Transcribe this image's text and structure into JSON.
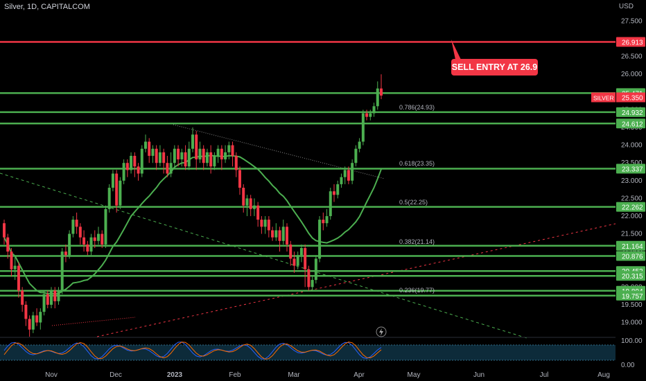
{
  "chart_data": {
    "type": "candlestick",
    "symbol": "Silver, 1D, CAPITALCOM",
    "currency": "USD",
    "y_range": [
      18.6,
      27.9
    ],
    "price_ticks": [
      "27.500",
      "26.500",
      "26.000",
      "25.000",
      "24.500",
      "24.000",
      "23.500",
      "23.000",
      "22.500",
      "22.000",
      "21.500",
      "21.000",
      "20.500",
      "20.000",
      "19.500",
      "19.000"
    ],
    "x_ticks": [
      "Nov",
      "Dec",
      "2023",
      "Feb",
      "Mar",
      "Apr",
      "May",
      "Jun",
      "Jul",
      "Aug"
    ],
    "horizontal_levels": [
      {
        "value": 26.913,
        "label": "26.913",
        "color": "#f23645"
      },
      {
        "value": 25.471,
        "label": "25.471",
        "color": "#4caf50"
      },
      {
        "value": 24.932,
        "label": "24.932",
        "color": "#4caf50"
      },
      {
        "value": 24.612,
        "label": "24.612",
        "color": "#4caf50"
      },
      {
        "value": 23.337,
        "label": "23.337",
        "color": "#4caf50"
      },
      {
        "value": 22.262,
        "label": "22.262",
        "color": "#4caf50"
      },
      {
        "value": 21.164,
        "label": "21.164",
        "color": "#4caf50"
      },
      {
        "value": 20.876,
        "label": "20.876",
        "color": "#4caf50"
      },
      {
        "value": 20.452,
        "label": "20.452",
        "color": "#4caf50"
      },
      {
        "value": 20.315,
        "label": "20.315",
        "color": "#4caf50"
      },
      {
        "value": 19.894,
        "label": "19.894",
        "color": "#4caf50"
      },
      {
        "value": 19.757,
        "label": "19.757",
        "color": "#4caf50"
      }
    ],
    "fib_levels": [
      {
        "label": "0.786(24.93)",
        "value": 24.93
      },
      {
        "label": "0.618(23.35)",
        "value": 23.35
      },
      {
        "label": "0.5(22.25)",
        "value": 22.25
      },
      {
        "label": "0.382(21.14)",
        "value": 21.14
      },
      {
        "label": "0.236(19.77)",
        "value": 19.77
      }
    ],
    "last_price": {
      "name": "SILVER",
      "value": "25.350",
      "color": "#f23645"
    },
    "annotation": "SELL ENTRY AT 26.9",
    "oscillator_ticks": [
      "100.00",
      "0.00"
    ],
    "up_color": "#4caf50",
    "down_color": "#f23645",
    "candles": [
      [
        21.8,
        21.4,
        21.9,
        21.2
      ],
      [
        21.4,
        21.0,
        21.5,
        20.8
      ],
      [
        21.0,
        20.5,
        21.1,
        20.3
      ],
      [
        20.5,
        20.6,
        20.9,
        20.2
      ],
      [
        20.6,
        19.9,
        20.7,
        19.7
      ],
      [
        19.9,
        19.5,
        20.0,
        19.3
      ],
      [
        19.5,
        19.1,
        19.6,
        18.9
      ],
      [
        19.1,
        18.8,
        19.2,
        18.6
      ],
      [
        18.8,
        19.2,
        19.3,
        18.7
      ],
      [
        19.2,
        19.0,
        19.4,
        18.9
      ],
      [
        19.0,
        19.3,
        19.4,
        18.8
      ],
      [
        19.3,
        19.8,
        19.9,
        19.2
      ],
      [
        19.8,
        19.5,
        19.9,
        19.4
      ],
      [
        19.5,
        19.9,
        20.0,
        19.4
      ],
      [
        19.9,
        19.6,
        20.0,
        19.4
      ],
      [
        19.6,
        19.9,
        20.0,
        19.5
      ],
      [
        19.9,
        21.0,
        21.1,
        19.8
      ],
      [
        21.0,
        20.9,
        21.2,
        20.7
      ],
      [
        20.9,
        21.5,
        21.6,
        20.8
      ],
      [
        21.5,
        21.9,
        22.0,
        21.4
      ],
      [
        21.9,
        21.7,
        22.1,
        21.5
      ],
      [
        21.7,
        21.4,
        21.8,
        21.2
      ],
      [
        21.4,
        21.2,
        21.6,
        21.0
      ],
      [
        21.2,
        21.0,
        21.3,
        20.9
      ],
      [
        21.0,
        21.4,
        21.5,
        20.9
      ],
      [
        21.4,
        21.3,
        21.6,
        21.1
      ],
      [
        21.3,
        21.5,
        21.7,
        21.2
      ],
      [
        21.5,
        21.2,
        21.6,
        21.1
      ],
      [
        21.2,
        22.2,
        22.3,
        21.1
      ],
      [
        22.2,
        22.8,
        22.9,
        22.1
      ],
      [
        22.8,
        23.2,
        23.3,
        22.7
      ],
      [
        23.2,
        22.3,
        23.3,
        22.1
      ],
      [
        22.3,
        23.0,
        23.1,
        22.2
      ],
      [
        23.0,
        23.5,
        23.6,
        22.9
      ],
      [
        23.5,
        23.3,
        23.6,
        23.1
      ],
      [
        23.3,
        23.7,
        23.8,
        23.2
      ],
      [
        23.7,
        23.4,
        23.8,
        23.1
      ],
      [
        23.4,
        23.2,
        23.5,
        23.0
      ],
      [
        23.2,
        23.9,
        24.0,
        23.1
      ],
      [
        23.9,
        24.1,
        24.3,
        23.8
      ],
      [
        24.1,
        23.7,
        24.2,
        23.5
      ],
      [
        23.7,
        23.9,
        24.0,
        23.5
      ],
      [
        23.9,
        23.5,
        24.0,
        23.3
      ],
      [
        23.5,
        23.8,
        24.0,
        23.4
      ],
      [
        23.8,
        23.5,
        23.9,
        23.2
      ],
      [
        23.5,
        23.2,
        23.7,
        23.1
      ],
      [
        23.2,
        23.5,
        23.8,
        23.1
      ],
      [
        23.5,
        23.9,
        24.0,
        23.4
      ],
      [
        23.9,
        23.6,
        24.0,
        23.4
      ],
      [
        23.6,
        23.8,
        23.9,
        23.4
      ],
      [
        23.8,
        23.4,
        24.0,
        23.3
      ],
      [
        23.4,
        23.9,
        24.1,
        23.3
      ],
      [
        23.9,
        24.3,
        24.5,
        23.8
      ],
      [
        24.3,
        23.6,
        24.4,
        23.3
      ],
      [
        23.6,
        23.9,
        24.1,
        23.5
      ],
      [
        23.9,
        23.5,
        24.0,
        23.3
      ],
      [
        23.5,
        23.8,
        23.9,
        23.4
      ],
      [
        23.8,
        23.4,
        24.0,
        23.2
      ],
      [
        23.4,
        23.7,
        23.8,
        23.3
      ],
      [
        23.7,
        23.9,
        24.0,
        23.5
      ],
      [
        23.9,
        23.6,
        24.0,
        23.3
      ],
      [
        23.6,
        23.8,
        24.0,
        23.5
      ],
      [
        23.8,
        24.0,
        24.1,
        23.6
      ],
      [
        24.0,
        23.7,
        24.1,
        23.4
      ],
      [
        23.7,
        23.3,
        23.8,
        23.1
      ],
      [
        23.3,
        22.8,
        23.4,
        22.6
      ],
      [
        22.8,
        22.3,
        22.9,
        22.1
      ],
      [
        22.3,
        22.5,
        22.6,
        22.0
      ],
      [
        22.5,
        22.2,
        22.6,
        22.0
      ],
      [
        22.2,
        22.3,
        22.5,
        22.0
      ],
      [
        22.3,
        21.9,
        22.4,
        21.7
      ],
      [
        21.9,
        21.7,
        22.0,
        21.5
      ],
      [
        21.7,
        21.9,
        22.0,
        21.5
      ],
      [
        21.9,
        21.6,
        22.0,
        21.4
      ],
      [
        21.6,
        21.4,
        21.7,
        21.3
      ],
      [
        21.4,
        21.6,
        21.8,
        21.3
      ],
      [
        21.6,
        21.3,
        21.7,
        21.0
      ],
      [
        21.3,
        21.7,
        21.9,
        21.2
      ],
      [
        21.7,
        21.2,
        21.8,
        21.0
      ],
      [
        21.2,
        20.8,
        21.3,
        20.6
      ],
      [
        20.8,
        20.6,
        21.0,
        20.4
      ],
      [
        20.6,
        20.9,
        21.0,
        20.5
      ],
      [
        20.9,
        21.1,
        21.2,
        20.7
      ],
      [
        21.1,
        20.5,
        21.2,
        20.0
      ],
      [
        20.5,
        20.0,
        20.6,
        19.9
      ],
      [
        20.0,
        20.2,
        20.3,
        19.9
      ],
      [
        20.2,
        20.8,
        20.9,
        20.1
      ],
      [
        20.8,
        21.9,
        22.0,
        20.7
      ],
      [
        21.9,
        21.8,
        22.1,
        21.6
      ],
      [
        21.8,
        22.0,
        22.2,
        21.7
      ],
      [
        22.0,
        22.7,
        22.8,
        21.9
      ],
      [
        22.7,
        22.6,
        22.9,
        22.4
      ],
      [
        22.6,
        22.9,
        23.0,
        22.5
      ],
      [
        22.9,
        23.1,
        23.2,
        22.8
      ],
      [
        23.1,
        23.3,
        23.4,
        22.9
      ],
      [
        23.3,
        23.0,
        23.4,
        22.9
      ],
      [
        23.0,
        23.5,
        23.6,
        22.9
      ],
      [
        23.5,
        23.9,
        24.0,
        23.4
      ],
      [
        23.9,
        24.1,
        24.2,
        23.8
      ],
      [
        24.1,
        24.9,
        25.0,
        24.0
      ],
      [
        24.9,
        24.8,
        25.0,
        24.7
      ],
      [
        24.8,
        24.9,
        25.0,
        24.7
      ],
      [
        24.9,
        25.1,
        25.2,
        24.8
      ],
      [
        25.1,
        25.6,
        25.8,
        25.0
      ],
      [
        25.6,
        25.4,
        26.0,
        25.3
      ]
    ]
  }
}
